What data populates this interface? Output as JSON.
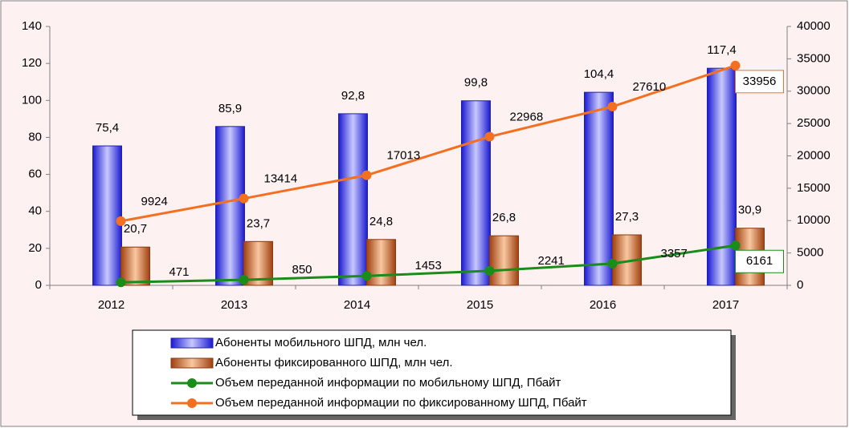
{
  "chart_data": {
    "type": "bar-line",
    "categories": [
      "2012",
      "2013",
      "2014",
      "2015",
      "2016",
      "2017"
    ],
    "series": [
      {
        "name": "Абоненты мобильного ШПД, млн чел.",
        "type": "bar",
        "color": "#3a3af0",
        "values": [
          75.4,
          85.9,
          92.8,
          99.8,
          104.4,
          117.4
        ],
        "value_labels": [
          "75,4",
          "85,9",
          "92,8",
          "99,8",
          "104,4",
          "117,4"
        ]
      },
      {
        "name": "Абоненты фиксированного ШПД, млн чел.",
        "type": "bar",
        "color": "#c0602a",
        "values": [
          20.7,
          23.7,
          24.8,
          26.8,
          27.3,
          30.9
        ],
        "value_labels": [
          "20,7",
          "23,7",
          "24,8",
          "26,8",
          "27,3",
          "30,9"
        ]
      },
      {
        "name": "Объем переданной информации по мобильному ШПД, Пбайт",
        "type": "line",
        "axis": "y2",
        "color": "#1a8c1a",
        "values": [
          471,
          850,
          1453,
          2241,
          3357,
          6161
        ]
      },
      {
        "name": "Объем переданной информации по фиксированному ШПД, Пбайт",
        "type": "line",
        "axis": "y2",
        "color": "#f37021",
        "values": [
          9924,
          13414,
          17013,
          22968,
          27610,
          33956
        ]
      }
    ],
    "ylim": [
      0,
      140
    ],
    "yticks": [
      0,
      20,
      40,
      60,
      80,
      100,
      120,
      140
    ],
    "y2lim": [
      0,
      40000
    ],
    "y2ticks": [
      0,
      5000,
      10000,
      15000,
      20000,
      25000,
      30000,
      35000,
      40000
    ]
  }
}
